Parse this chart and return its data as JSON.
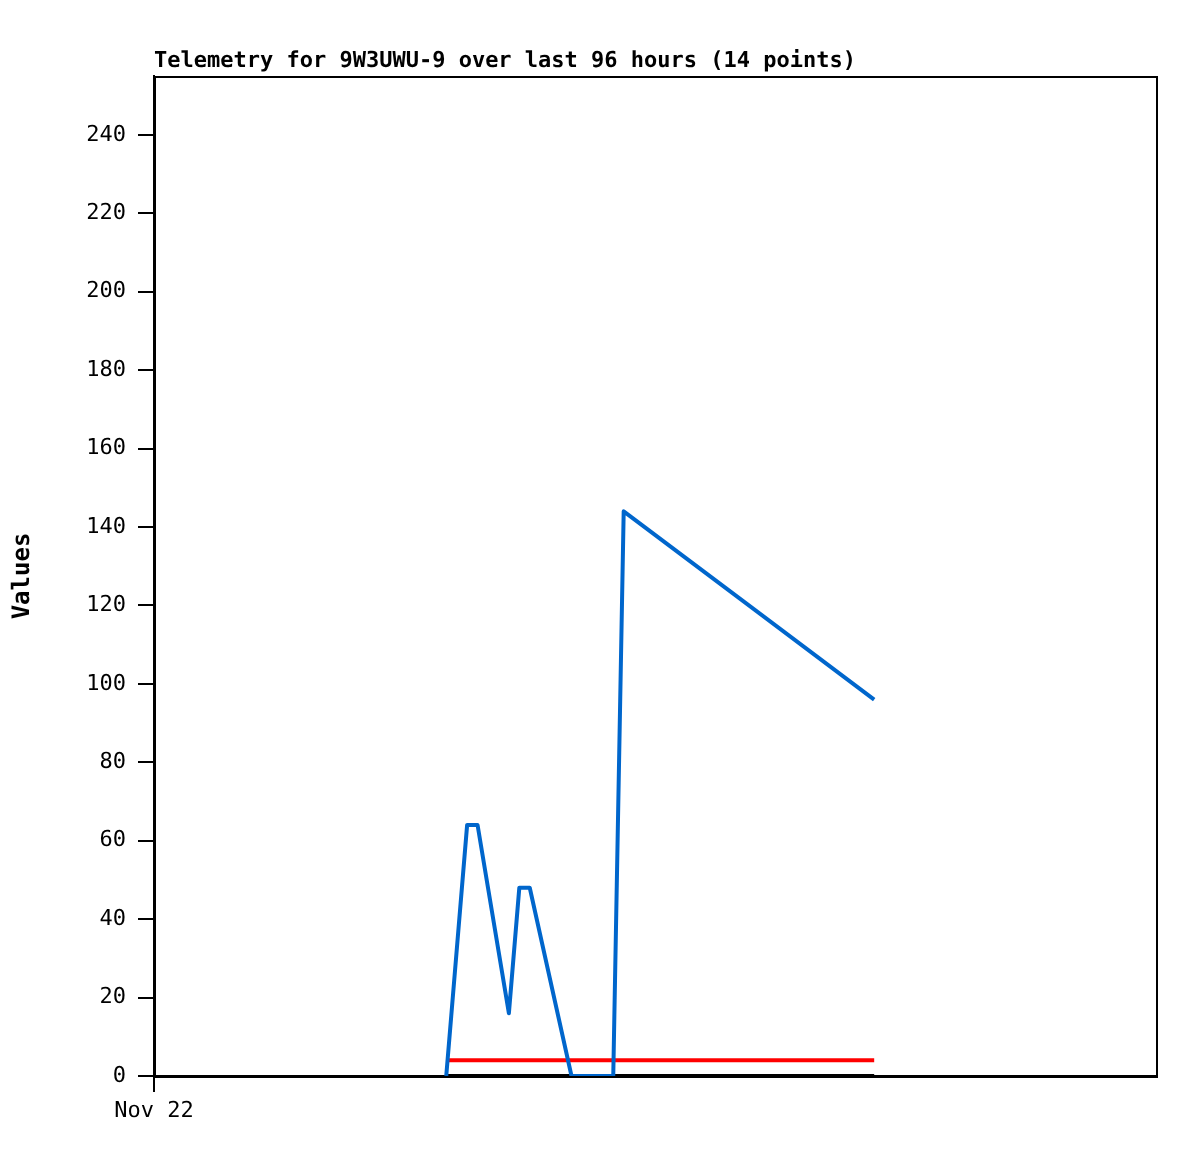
{
  "chart_data": {
    "type": "line",
    "title": "Telemetry for 9W3UWU-9 over last 96 hours (14 points)",
    "ylabel": "Values",
    "categories": [
      "Nov 22",
      null,
      null,
      null,
      null,
      null,
      null,
      null,
      null,
      null,
      null,
      null,
      null,
      null,
      null,
      null,
      null,
      null,
      null,
      null,
      null,
      null,
      null,
      null,
      null,
      null,
      null,
      null,
      null,
      null,
      null,
      null,
      null,
      null,
      null,
      null,
      null,
      null,
      null,
      null,
      null,
      null,
      null,
      null,
      null,
      null,
      null,
      null,
      null,
      null,
      null,
      null,
      null,
      null,
      null,
      null,
      null,
      null,
      null,
      null,
      null,
      null,
      null,
      null,
      null,
      null,
      null,
      null,
      null,
      null,
      null,
      null,
      null,
      null,
      null,
      null,
      null,
      null,
      null,
      null,
      null,
      null,
      null,
      null,
      null,
      null,
      null,
      null,
      null,
      null,
      null,
      null,
      null,
      null,
      null,
      null,
      null
    ],
    "ylim": [
      0,
      255
    ],
    "yticks": [
      0,
      20,
      40,
      60,
      80,
      100,
      120,
      140,
      160,
      180,
      200,
      220,
      240
    ],
    "grid": false,
    "legend": false,
    "marker": "none",
    "line_style": "solid",
    "series": [
      {
        "color": "#0066cc",
        "values": [
          null,
          null,
          null,
          null,
          null,
          null,
          null,
          null,
          null,
          null,
          null,
          null,
          null,
          null,
          null,
          null,
          null,
          null,
          null,
          null,
          null,
          null,
          null,
          null,
          null,
          null,
          null,
          null,
          0,
          null,
          64,
          64,
          48,
          null,
          16,
          48,
          48,
          null,
          null,
          null,
          0,
          null,
          null,
          null,
          0,
          144,
          null,
          null,
          null,
          null,
          null,
          null,
          null,
          null,
          null,
          null,
          null,
          null,
          null,
          null,
          null,
          null,
          null,
          null,
          null,
          null,
          null,
          null,
          null,
          96,
          null,
          null,
          null,
          null,
          null,
          null,
          null,
          null,
          null,
          null,
          null,
          null,
          null,
          null,
          null,
          null,
          null,
          null,
          null,
          null,
          null,
          null,
          null,
          null,
          null,
          null,
          null
        ]
      },
      {
        "color": "#ff0000",
        "values": [
          null,
          null,
          null,
          null,
          null,
          null,
          null,
          null,
          null,
          null,
          null,
          null,
          null,
          null,
          null,
          null,
          null,
          null,
          null,
          null,
          null,
          null,
          null,
          null,
          null,
          null,
          null,
          null,
          4,
          null,
          null,
          null,
          null,
          null,
          null,
          null,
          null,
          null,
          null,
          null,
          null,
          null,
          null,
          null,
          null,
          null,
          null,
          null,
          null,
          null,
          null,
          null,
          null,
          null,
          null,
          null,
          null,
          null,
          null,
          null,
          null,
          null,
          null,
          null,
          null,
          null,
          null,
          null,
          null,
          4,
          null,
          null,
          null,
          null,
          null,
          null,
          null,
          null,
          null,
          null,
          null,
          null,
          null,
          null,
          null,
          null,
          null,
          null,
          null,
          null,
          null,
          null,
          null,
          null,
          null,
          null,
          null
        ]
      },
      {
        "color": "#000000",
        "values": [
          null,
          null,
          null,
          null,
          null,
          null,
          null,
          null,
          null,
          null,
          null,
          null,
          null,
          null,
          null,
          null,
          null,
          null,
          null,
          null,
          null,
          null,
          null,
          null,
          null,
          null,
          null,
          null,
          0,
          null,
          null,
          null,
          null,
          null,
          null,
          null,
          null,
          null,
          null,
          null,
          null,
          null,
          null,
          null,
          null,
          null,
          null,
          null,
          null,
          null,
          null,
          null,
          null,
          null,
          null,
          null,
          null,
          null,
          null,
          null,
          null,
          null,
          null,
          null,
          null,
          null,
          null,
          null,
          null,
          0,
          null,
          null,
          null,
          null,
          null,
          null,
          null,
          null,
          null,
          null,
          null,
          null,
          null,
          null,
          null,
          null,
          null,
          null,
          null,
          null,
          null,
          null,
          null,
          null,
          null,
          null,
          null
        ]
      }
    ]
  }
}
